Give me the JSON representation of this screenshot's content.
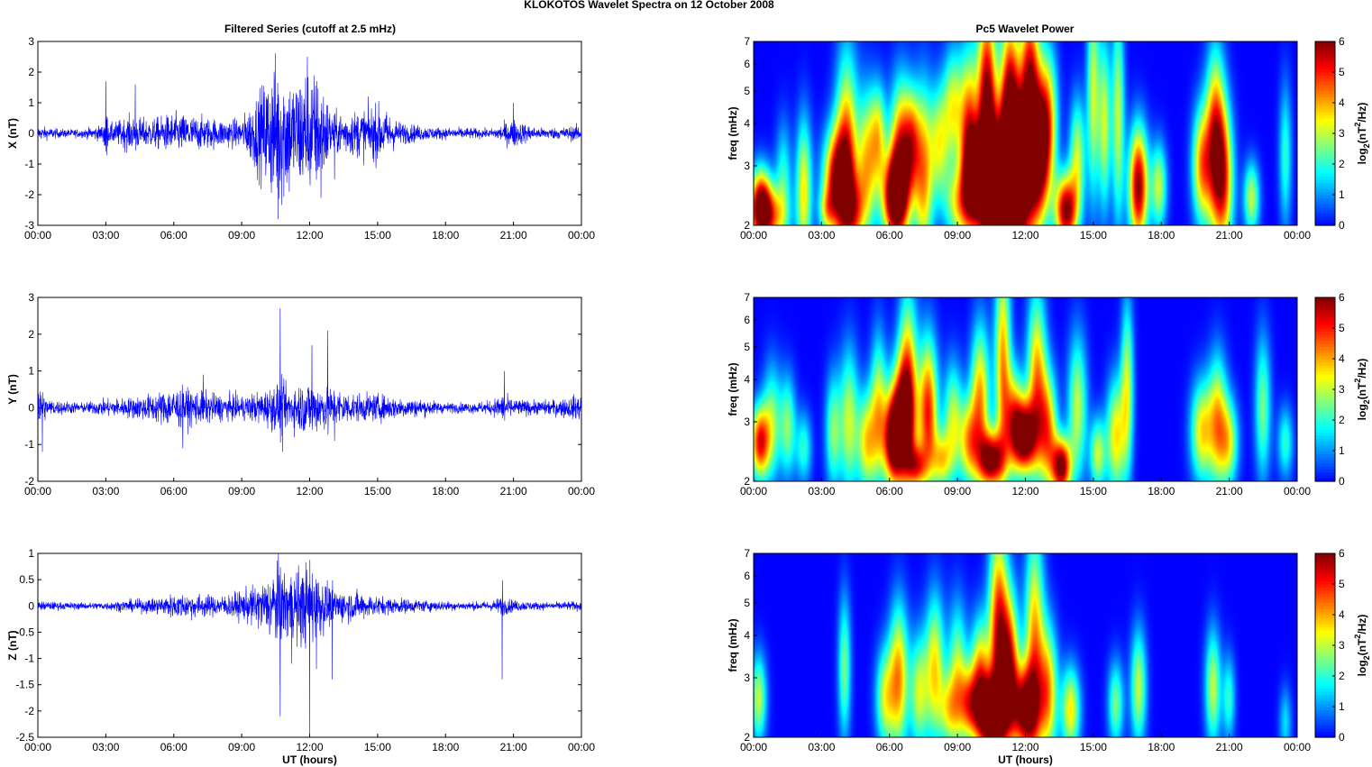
{
  "figure_title": "KLOKOTOS Wavelet Spectra on 12 October   2008",
  "left_title": "Filtered Series (cutoff at 2.5 mHz)",
  "right_title": "Pc5 Wavelet Power",
  "xlabel": "UT (hours)",
  "time_ticks": [
    "00:00",
    "03:00",
    "06:00",
    "09:00",
    "12:00",
    "15:00",
    "18:00",
    "21:00",
    "00:00"
  ],
  "colors": {
    "series_line": "#0000ff",
    "background": "#00008f"
  },
  "chart_data": [
    {
      "type": "line",
      "title": "Filtered Series (cutoff at 2.5 mHz)",
      "ylabel": "X (nT)",
      "xlabel": "",
      "xlim": [
        0,
        24
      ],
      "ylim": [
        -3,
        3
      ],
      "yticks": [
        "3",
        "2",
        "1",
        "0",
        "-1",
        "-2",
        "-3"
      ],
      "envelope": [
        [
          0,
          0.25
        ],
        [
          1,
          0.15
        ],
        [
          2,
          0.15
        ],
        [
          2.9,
          0.3
        ],
        [
          3,
          1.7
        ],
        [
          3.1,
          0.3
        ],
        [
          4,
          0.6
        ],
        [
          5,
          0.5
        ],
        [
          6,
          0.7
        ],
        [
          7,
          0.6
        ],
        [
          8,
          0.5
        ],
        [
          9,
          0.5
        ],
        [
          10,
          1.8
        ],
        [
          10.6,
          2.8
        ],
        [
          11.3,
          1.9
        ],
        [
          11.9,
          2.5
        ],
        [
          12.6,
          1.7
        ],
        [
          13,
          0.7
        ],
        [
          14,
          0.8
        ],
        [
          15,
          1.0
        ],
        [
          16,
          0.4
        ],
        [
          17,
          0.25
        ],
        [
          18,
          0.2
        ],
        [
          19,
          0.2
        ],
        [
          20,
          0.15
        ],
        [
          21,
          0.5
        ],
        [
          22,
          0.2
        ],
        [
          23,
          0.2
        ],
        [
          24,
          0.3
        ]
      ],
      "spikes": [
        [
          3.0,
          1.7
        ],
        [
          4.3,
          1.6
        ],
        [
          10.6,
          -2.8
        ],
        [
          11.1,
          -1.9
        ],
        [
          11.9,
          2.5
        ],
        [
          12.5,
          -2.1
        ],
        [
          13.1,
          -1.5
        ],
        [
          21.0,
          1.0
        ]
      ]
    },
    {
      "type": "line",
      "title": "",
      "ylabel": "Y (nT)",
      "xlabel": "",
      "xlim": [
        0,
        24
      ],
      "ylim": [
        -2,
        3
      ],
      "yticks": [
        "3",
        "2",
        "1",
        "0",
        "-1",
        "-2"
      ],
      "envelope": [
        [
          0,
          0.8
        ],
        [
          0.4,
          0.25
        ],
        [
          1,
          0.2
        ],
        [
          2,
          0.15
        ],
        [
          3,
          0.25
        ],
        [
          4,
          0.3
        ],
        [
          5,
          0.4
        ],
        [
          6,
          0.6
        ],
        [
          7,
          0.5
        ],
        [
          8,
          0.4
        ],
        [
          9,
          0.35
        ],
        [
          10,
          0.5
        ],
        [
          10.7,
          0.8
        ],
        [
          11,
          0.6
        ],
        [
          12,
          0.8
        ],
        [
          13,
          0.6
        ],
        [
          14,
          0.4
        ],
        [
          15,
          0.4
        ],
        [
          16,
          0.3
        ],
        [
          17,
          0.25
        ],
        [
          18,
          0.15
        ],
        [
          19,
          0.15
        ],
        [
          20,
          0.2
        ],
        [
          20.5,
          0.4
        ],
        [
          21,
          0.25
        ],
        [
          22,
          0.2
        ],
        [
          23,
          0.25
        ],
        [
          24,
          0.4
        ]
      ],
      "spikes": [
        [
          0.2,
          -1.2
        ],
        [
          6.4,
          -1.1
        ],
        [
          7.3,
          0.9
        ],
        [
          10.7,
          2.7
        ],
        [
          10.8,
          -1.2
        ],
        [
          12.1,
          1.7
        ],
        [
          12.8,
          2.1
        ],
        [
          13.1,
          -0.9
        ],
        [
          20.6,
          1.0
        ]
      ]
    },
    {
      "type": "line",
      "title": "",
      "ylabel": "Z (nT)",
      "xlabel": "UT (hours)",
      "xlim": [
        0,
        24
      ],
      "ylim": [
        -2.5,
        1
      ],
      "yticks": [
        "1",
        "0.5",
        "0",
        "-0.5",
        "-1",
        "-1.5",
        "-2",
        "-2.5"
      ],
      "envelope": [
        [
          0,
          0.1
        ],
        [
          1,
          0.08
        ],
        [
          2,
          0.07
        ],
        [
          3,
          0.08
        ],
        [
          4,
          0.12
        ],
        [
          5,
          0.15
        ],
        [
          6,
          0.25
        ],
        [
          7,
          0.25
        ],
        [
          8,
          0.2
        ],
        [
          9,
          0.3
        ],
        [
          10,
          0.5
        ],
        [
          10.5,
          0.85
        ],
        [
          11,
          0.7
        ],
        [
          12,
          0.85
        ],
        [
          12.5,
          0.6
        ],
        [
          13,
          0.35
        ],
        [
          14,
          0.3
        ],
        [
          15,
          0.2
        ],
        [
          16,
          0.15
        ],
        [
          17,
          0.12
        ],
        [
          18,
          0.1
        ],
        [
          19,
          0.08
        ],
        [
          20,
          0.1
        ],
        [
          20.5,
          0.2
        ],
        [
          21,
          0.12
        ],
        [
          22,
          0.08
        ],
        [
          23,
          0.08
        ],
        [
          24,
          0.1
        ]
      ],
      "spikes": [
        [
          10.7,
          -2.1
        ],
        [
          11.2,
          -1.1
        ],
        [
          12.0,
          -2.5
        ],
        [
          12.3,
          -1.2
        ],
        [
          13.0,
          -1.4
        ],
        [
          20.5,
          -1.4
        ]
      ]
    },
    {
      "type": "heatmap",
      "title": "Pc5 Wavelet Power",
      "ylabel": "freq (mHz)",
      "xlabel": "",
      "xlim": [
        0,
        24
      ],
      "ylim": [
        2,
        7
      ],
      "yscale": "log",
      "yticks": [
        "2",
        "3",
        "4",
        "5",
        "6",
        "7"
      ],
      "colorbar": {
        "label": "log2(nT2/Hz)",
        "range": [
          0,
          6
        ],
        "ticks": [
          "0",
          "1",
          "2",
          "3",
          "4",
          "5",
          "6"
        ]
      },
      "blobs": [
        [
          0.3,
          2.3,
          5.5,
          0.35,
          0.5
        ],
        [
          0.7,
          2.1,
          3.5,
          0.5,
          0.4
        ],
        [
          1.3,
          2.7,
          2,
          0.25,
          0.8
        ],
        [
          2.2,
          2.5,
          3.5,
          0.25,
          1.0
        ],
        [
          3.2,
          2.2,
          2,
          0.25,
          0.3
        ],
        [
          3.6,
          2.7,
          5,
          0.4,
          0.7
        ],
        [
          4.1,
          2.9,
          5,
          0.35,
          1.5
        ],
        [
          4.5,
          2.2,
          2.5,
          0.3,
          0.5
        ],
        [
          5.0,
          3.0,
          3.5,
          0.3,
          1.0
        ],
        [
          5.5,
          3.7,
          3,
          0.25,
          0.7
        ],
        [
          6.2,
          2.4,
          6,
          0.4,
          0.6
        ],
        [
          6.5,
          3.2,
          5,
          0.35,
          1.0
        ],
        [
          7.0,
          3.5,
          3,
          0.25,
          0.7
        ],
        [
          7.5,
          2.8,
          4,
          0.3,
          1.2
        ],
        [
          8.2,
          3.5,
          3,
          0.3,
          0.8
        ],
        [
          8.8,
          4.5,
          3,
          0.3,
          0.8
        ],
        [
          9.0,
          2.3,
          3,
          0.4,
          0.5
        ],
        [
          9.5,
          3.5,
          5,
          0.3,
          1.2
        ],
        [
          9.9,
          2.7,
          6,
          0.35,
          0.6
        ],
        [
          10.3,
          4.5,
          6,
          0.3,
          1.5
        ],
        [
          10.8,
          2.5,
          7,
          0.5,
          1.0
        ],
        [
          11.3,
          4.0,
          6,
          0.3,
          1.5
        ],
        [
          11.8,
          2.8,
          6,
          0.4,
          1.2
        ],
        [
          12.2,
          5.0,
          5,
          0.3,
          1.5
        ],
        [
          12.6,
          3.2,
          5,
          0.3,
          1.0
        ],
        [
          13.0,
          4.0,
          4,
          0.3,
          1.0
        ],
        [
          13.8,
          2.2,
          6,
          0.35,
          0.5
        ],
        [
          14.3,
          3.2,
          3,
          0.25,
          0.8
        ],
        [
          15.0,
          5.0,
          3,
          0.2,
          1.5
        ],
        [
          15.5,
          4.0,
          3,
          0.2,
          1.2
        ],
        [
          16.1,
          4.2,
          3,
          0.2,
          1.5
        ],
        [
          17.0,
          2.6,
          6,
          0.3,
          0.8
        ],
        [
          17.9,
          2.6,
          3,
          0.25,
          0.6
        ],
        [
          19.8,
          3.0,
          4,
          0.3,
          0.8
        ],
        [
          20.4,
          3.5,
          5,
          0.3,
          1.2
        ],
        [
          20.8,
          2.7,
          4,
          0.3,
          1.0
        ],
        [
          22.0,
          2.4,
          3,
          0.25,
          0.5
        ],
        [
          23.5,
          3.2,
          2,
          0.2,
          1.0
        ]
      ]
    },
    {
      "type": "heatmap",
      "title": "",
      "ylabel": "freq (mHz)",
      "xlabel": "",
      "xlim": [
        0,
        24
      ],
      "ylim": [
        2,
        7
      ],
      "yscale": "log",
      "yticks": [
        "2",
        "3",
        "4",
        "5",
        "6",
        "7"
      ],
      "colorbar": {
        "label": "log2(nT2/Hz)",
        "range": [
          0,
          6
        ],
        "ticks": [
          "0",
          "1",
          "2",
          "3",
          "4",
          "5",
          "6"
        ]
      },
      "blobs": [
        [
          0.25,
          2.6,
          5,
          0.3,
          0.5
        ],
        [
          0.8,
          3.0,
          2.5,
          0.3,
          0.8
        ],
        [
          1.5,
          2.9,
          2.5,
          0.25,
          0.7
        ],
        [
          2.2,
          2.5,
          2,
          0.25,
          0.5
        ],
        [
          3.5,
          2.8,
          2.5,
          0.25,
          0.8
        ],
        [
          4.2,
          3.0,
          3,
          0.3,
          1.0
        ],
        [
          5.0,
          2.6,
          3.5,
          0.3,
          0.7
        ],
        [
          5.5,
          3.3,
          3,
          0.25,
          1.0
        ],
        [
          6.1,
          2.6,
          4,
          0.3,
          0.6
        ],
        [
          6.5,
          2.9,
          6,
          0.4,
          0.8
        ],
        [
          6.8,
          4.0,
          4,
          0.3,
          1.2
        ],
        [
          7.2,
          2.2,
          3.5,
          0.3,
          0.3
        ],
        [
          7.7,
          3.2,
          5,
          0.3,
          1.0
        ],
        [
          8.3,
          2.3,
          3,
          0.3,
          0.4
        ],
        [
          8.8,
          3.0,
          3,
          0.3,
          0.8
        ],
        [
          9.5,
          2.6,
          3.5,
          0.3,
          0.6
        ],
        [
          10.0,
          3.5,
          4,
          0.3,
          1.0
        ],
        [
          10.5,
          2.3,
          6,
          0.4,
          0.4
        ],
        [
          11.0,
          4.5,
          4,
          0.25,
          1.5
        ],
        [
          11.5,
          3.0,
          4,
          0.3,
          0.7
        ],
        [
          12.0,
          2.7,
          6,
          0.35,
          0.5
        ],
        [
          12.5,
          4.0,
          4,
          0.3,
          1.2
        ],
        [
          13.0,
          2.8,
          4,
          0.3,
          0.8
        ],
        [
          13.6,
          2.2,
          6,
          0.3,
          0.4
        ],
        [
          14.3,
          3.3,
          3,
          0.3,
          1.0
        ],
        [
          15.2,
          2.4,
          3,
          0.25,
          0.5
        ],
        [
          16.0,
          2.7,
          3.5,
          0.3,
          0.8
        ],
        [
          16.5,
          3.8,
          3,
          0.2,
          1.2
        ],
        [
          19.8,
          2.8,
          3.5,
          0.35,
          0.7
        ],
        [
          20.5,
          3.0,
          3.5,
          0.3,
          0.9
        ],
        [
          21.0,
          2.6,
          3,
          0.3,
          0.6
        ],
        [
          22.5,
          3.3,
          2.5,
          0.25,
          1.0
        ],
        [
          23.5,
          2.6,
          2,
          0.25,
          0.5
        ]
      ]
    },
    {
      "type": "heatmap",
      "title": "",
      "ylabel": "freq (mHz)",
      "xlabel": "UT (hours)",
      "xlim": [
        0,
        24
      ],
      "ylim": [
        2,
        7
      ],
      "yscale": "log",
      "yticks": [
        "2",
        "3",
        "4",
        "5",
        "6",
        "7"
      ],
      "colorbar": {
        "label": "log2(nT2/Hz)",
        "range": [
          0,
          6
        ],
        "ticks": [
          "0",
          "1",
          "2",
          "3",
          "4",
          "5",
          "6"
        ]
      },
      "blobs": [
        [
          0.2,
          2.6,
          3,
          0.25,
          0.6
        ],
        [
          4.0,
          3.2,
          2.5,
          0.2,
          1.0
        ],
        [
          5.8,
          2.6,
          3,
          0.3,
          0.7
        ],
        [
          6.4,
          3.0,
          4,
          0.3,
          1.0
        ],
        [
          7.3,
          2.7,
          3,
          0.3,
          0.8
        ],
        [
          8.0,
          3.2,
          3.5,
          0.3,
          1.0
        ],
        [
          8.6,
          2.4,
          2.5,
          0.3,
          0.5
        ],
        [
          9.0,
          3.0,
          3,
          0.3,
          1.0
        ],
        [
          9.5,
          2.5,
          3.5,
          0.3,
          0.5
        ],
        [
          10.0,
          3.0,
          4,
          0.3,
          0.8
        ],
        [
          10.5,
          2.3,
          7,
          0.45,
          0.5
        ],
        [
          10.8,
          4.0,
          5,
          0.3,
          1.5
        ],
        [
          11.3,
          3.2,
          5,
          0.3,
          1.0
        ],
        [
          12.0,
          2.4,
          6,
          0.4,
          0.6
        ],
        [
          12.4,
          3.8,
          4,
          0.3,
          1.5
        ],
        [
          13.0,
          2.7,
          4,
          0.3,
          0.9
        ],
        [
          14.0,
          2.4,
          3.5,
          0.3,
          0.6
        ],
        [
          16.0,
          2.5,
          2.5,
          0.25,
          0.6
        ],
        [
          17.0,
          2.8,
          3,
          0.25,
          0.8
        ],
        [
          20.3,
          2.8,
          3,
          0.25,
          0.8
        ],
        [
          21.0,
          2.6,
          2,
          0.2,
          0.6
        ],
        [
          23.5,
          2.2,
          1.5,
          0.2,
          0.5
        ]
      ]
    }
  ]
}
